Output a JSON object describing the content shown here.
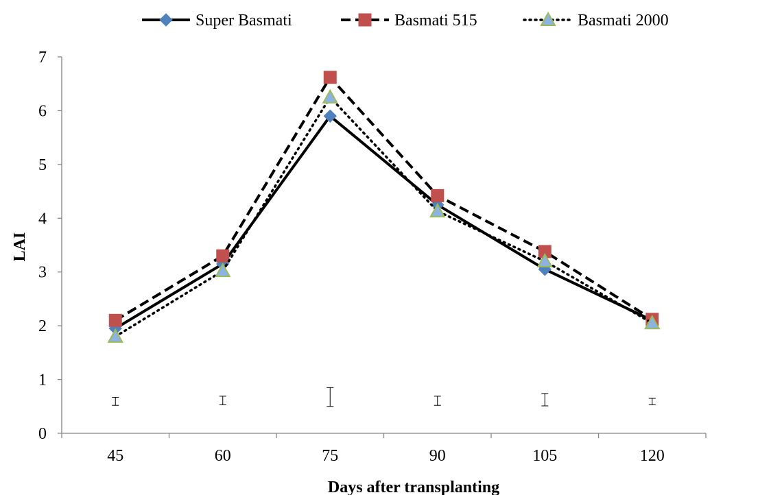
{
  "chart_data": {
    "type": "line",
    "title": "",
    "xlabel": "Days after transplanting",
    "ylabel": "LAI",
    "categories": [
      "45",
      "60",
      "75",
      "90",
      "105",
      "120"
    ],
    "ylim": [
      0,
      7
    ],
    "yticks": [
      0,
      1,
      2,
      3,
      4,
      5,
      6,
      7
    ],
    "grid": false,
    "legend_position": "top",
    "series": [
      {
        "name": "Super Basmati",
        "values": [
          1.95,
          3.15,
          5.9,
          4.25,
          3.05,
          2.1
        ],
        "marker": "diamond",
        "line_style": "solid",
        "marker_color": "#4F81BD"
      },
      {
        "name": "Basmati 515",
        "values": [
          2.1,
          3.3,
          6.62,
          4.42,
          3.38,
          2.12
        ],
        "marker": "square",
        "line_style": "dashed",
        "marker_color": "#C0504D"
      },
      {
        "name": "Basmati 2000",
        "values": [
          1.8,
          3.02,
          6.25,
          4.13,
          3.2,
          2.05
        ],
        "marker": "triangle",
        "line_style": "dotted",
        "marker_color": "#9BBB59"
      }
    ],
    "error_bars": [
      {
        "low": 0.52,
        "high": 0.67
      },
      {
        "low": 0.53,
        "high": 0.69
      },
      {
        "low": 0.5,
        "high": 0.85
      },
      {
        "low": 0.52,
        "high": 0.69
      },
      {
        "low": 0.51,
        "high": 0.74
      },
      {
        "low": 0.53,
        "high": 0.65
      }
    ]
  }
}
